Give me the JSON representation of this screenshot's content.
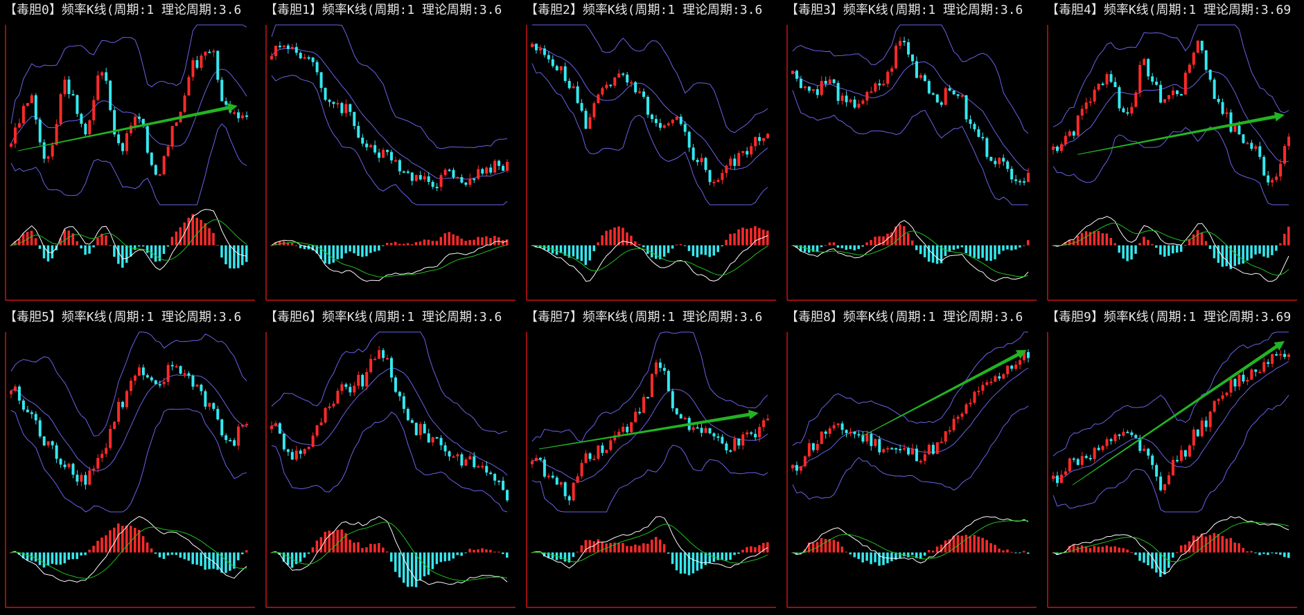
{
  "colors": {
    "background": "#000000",
    "frame": "#cc1414",
    "up_candle": "#ff2a2a",
    "down_candle": "#35e8f0",
    "bollinger": "#6a63e8",
    "trend_arrow": "#22b422",
    "macd_line": "#ffffff",
    "signal_line": "#1fc21f",
    "title_text": "#e6e6e6"
  },
  "panels": [
    {
      "title": "【毒胆0】频率K线(周期:1 理论周期:3.6",
      "shape": [
        0.35,
        0.6,
        0.2,
        0.7,
        0.4,
        0.75,
        0.3,
        0.5,
        0.15,
        0.4,
        0.8,
        0.9,
        0.5,
        0.45
      ],
      "arrow": [
        0.05,
        0.3,
        0.93,
        0.55
      ],
      "trend": "up"
    },
    {
      "title": "【毒胆1】频率K线(周期:1 理论周期:3.6",
      "shape": [
        0.9,
        0.92,
        0.85,
        0.6,
        0.55,
        0.35,
        0.25,
        0.2,
        0.12,
        0.1,
        0.15,
        0.1,
        0.18,
        0.2
      ],
      "arrow": null,
      "trend": "down"
    },
    {
      "title": "【毒胆2】频率K线(周期:1 理论周期:3.6",
      "shape": [
        0.9,
        0.85,
        0.7,
        0.45,
        0.7,
        0.72,
        0.6,
        0.4,
        0.45,
        0.25,
        0.1,
        0.2,
        0.3,
        0.4
      ],
      "arrow": null,
      "trend": "down"
    },
    {
      "title": "【毒胆3】频率K线(周期:1 理论周期:3.6",
      "shape": [
        0.75,
        0.65,
        0.7,
        0.55,
        0.6,
        0.7,
        0.95,
        0.75,
        0.6,
        0.65,
        0.4,
        0.25,
        0.15,
        0.1
      ],
      "arrow": null,
      "trend": "down"
    },
    {
      "title": "【毒胆4】频率K线(周期:1 理论周期:3.69",
      "shape": [
        0.3,
        0.4,
        0.6,
        0.75,
        0.5,
        0.8,
        0.6,
        0.65,
        0.95,
        0.6,
        0.4,
        0.3,
        0.1,
        0.35
      ],
      "arrow": [
        0.12,
        0.28,
        0.95,
        0.5
      ],
      "trend": "mixed"
    },
    {
      "title": "【毒胆5】频率K线(周期:1 理论周期:3.6",
      "shape": [
        0.7,
        0.55,
        0.35,
        0.25,
        0.15,
        0.3,
        0.6,
        0.8,
        0.7,
        0.85,
        0.75,
        0.6,
        0.35,
        0.5
      ],
      "arrow": null,
      "trend": "mixed"
    },
    {
      "title": "【毒胆6】频率K线(周期:1 理论周期:3.6",
      "shape": [
        0.5,
        0.3,
        0.35,
        0.55,
        0.7,
        0.75,
        0.95,
        0.65,
        0.45,
        0.4,
        0.3,
        0.25,
        0.2,
        0.05
      ],
      "arrow": null,
      "trend": "mixed"
    },
    {
      "title": "【毒胆7】频率K线(周期:1 理论周期:3.6",
      "shape": [
        0.3,
        0.15,
        0.05,
        0.3,
        0.35,
        0.45,
        0.6,
        0.85,
        0.55,
        0.45,
        0.4,
        0.35,
        0.4,
        0.5
      ],
      "arrow": [
        0.05,
        0.35,
        0.93,
        0.55
      ],
      "trend": "mixed"
    },
    {
      "title": "【毒胆8】频率K线(周期:1 理论周期:3.6",
      "shape": [
        0.2,
        0.35,
        0.45,
        0.45,
        0.4,
        0.35,
        0.32,
        0.3,
        0.35,
        0.5,
        0.65,
        0.75,
        0.85,
        0.9
      ],
      "arrow": [
        0.3,
        0.42,
        0.96,
        0.9
      ],
      "trend": "up"
    },
    {
      "title": "【毒胆9】频率K线(周期:1 理论周期:3.69",
      "shape": [
        0.15,
        0.25,
        0.3,
        0.35,
        0.45,
        0.3,
        0.1,
        0.3,
        0.45,
        0.6,
        0.75,
        0.8,
        0.9,
        0.95
      ],
      "arrow": [
        0.1,
        0.15,
        0.95,
        0.95
      ],
      "trend": "up"
    }
  ]
}
